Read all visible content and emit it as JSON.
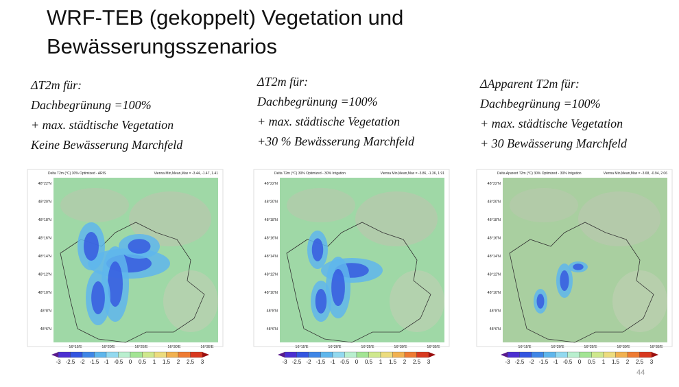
{
  "title": [
    "WRF-TEB (gekoppelt) Vegetation und",
    "Bewässerungsszenarios"
  ],
  "panels": [
    {
      "caption": [
        "ΔT2m für:",
        "Dachbegrünung =100%",
        " + max. städtische Vegetation",
        "Keine Bewässerung Marchfeld"
      ],
      "map_title": "Delta T2m (°C) 30% Optimized - ARIS",
      "stats": "Vienna Min,Mean,Max = -3.44, -1.47, 1.41",
      "lat_labels": [
        "48°22'N",
        "48°20'N",
        "48°18'N",
        "48°16'N",
        "48°14'N",
        "48°12'N",
        "48°10'N",
        "48°8'N",
        "48°6'N"
      ],
      "lon_labels": [
        "16°15'E",
        "16°20'E",
        "16°25'E",
        "16°30'E",
        "16°35'E"
      ],
      "colorbar_labels": [
        "-3",
        "-2.5",
        "-2",
        "-1.5",
        "-1",
        "-0.5",
        "0",
        "0.5",
        "1",
        "1.5",
        "2",
        "2.5",
        "3"
      ]
    },
    {
      "caption": [
        "ΔT2m für:",
        "Dachbegrünung =100%",
        " + max. städtische Vegetation",
        "+30 % Bewässerung Marchfeld"
      ],
      "map_title": "Delta T2m (°C) 30% Optimized - 30% Irrigation",
      "stats": "Vienna Min,Mean,Max = -3.86, -1.36, 1.91",
      "lat_labels": [
        "48°22'N",
        "48°20'N",
        "48°18'N",
        "48°16'N",
        "48°14'N",
        "48°12'N",
        "48°10'N",
        "48°8'N",
        "48°6'N"
      ],
      "lon_labels": [
        "16°15'E",
        "16°20'E",
        "16°25'E",
        "16°30'E",
        "16°35'E"
      ],
      "colorbar_labels": [
        "-3",
        "-2.5",
        "-2",
        "-1.5",
        "-1",
        "-0.5",
        "0",
        "0.5",
        "1",
        "1.5",
        "2",
        "2.5",
        "3"
      ]
    },
    {
      "caption": [
        "ΔApparent T2m für:",
        "Dachbegrünung =100%",
        " + max. städtische Vegetation",
        " +  30 Bewässerung  Marchfeld"
      ],
      "map_title": "Delta Aparent T2m (°C) 30% Optimized - 30% Irrigation",
      "stats": "Vienna Min,Mean,Max = -3.68, -0.94, 2.06",
      "lat_labels": [
        "48°22'N",
        "48°20'N",
        "48°18'N",
        "48°16'N",
        "48°14'N",
        "48°12'N",
        "48°10'N",
        "48°8'N",
        "48°6'N"
      ],
      "lon_labels": [
        "16°15'E",
        "16°20'E",
        "16°25'E",
        "16°30'E",
        "16°35'E"
      ],
      "colorbar_labels": [
        "-3",
        "-2.5",
        "-2",
        "-1.5",
        "-1",
        "-0.5",
        "0",
        "0.5",
        "1",
        "1.5",
        "2",
        "2.5",
        "3"
      ]
    }
  ],
  "page_number": "44"
}
